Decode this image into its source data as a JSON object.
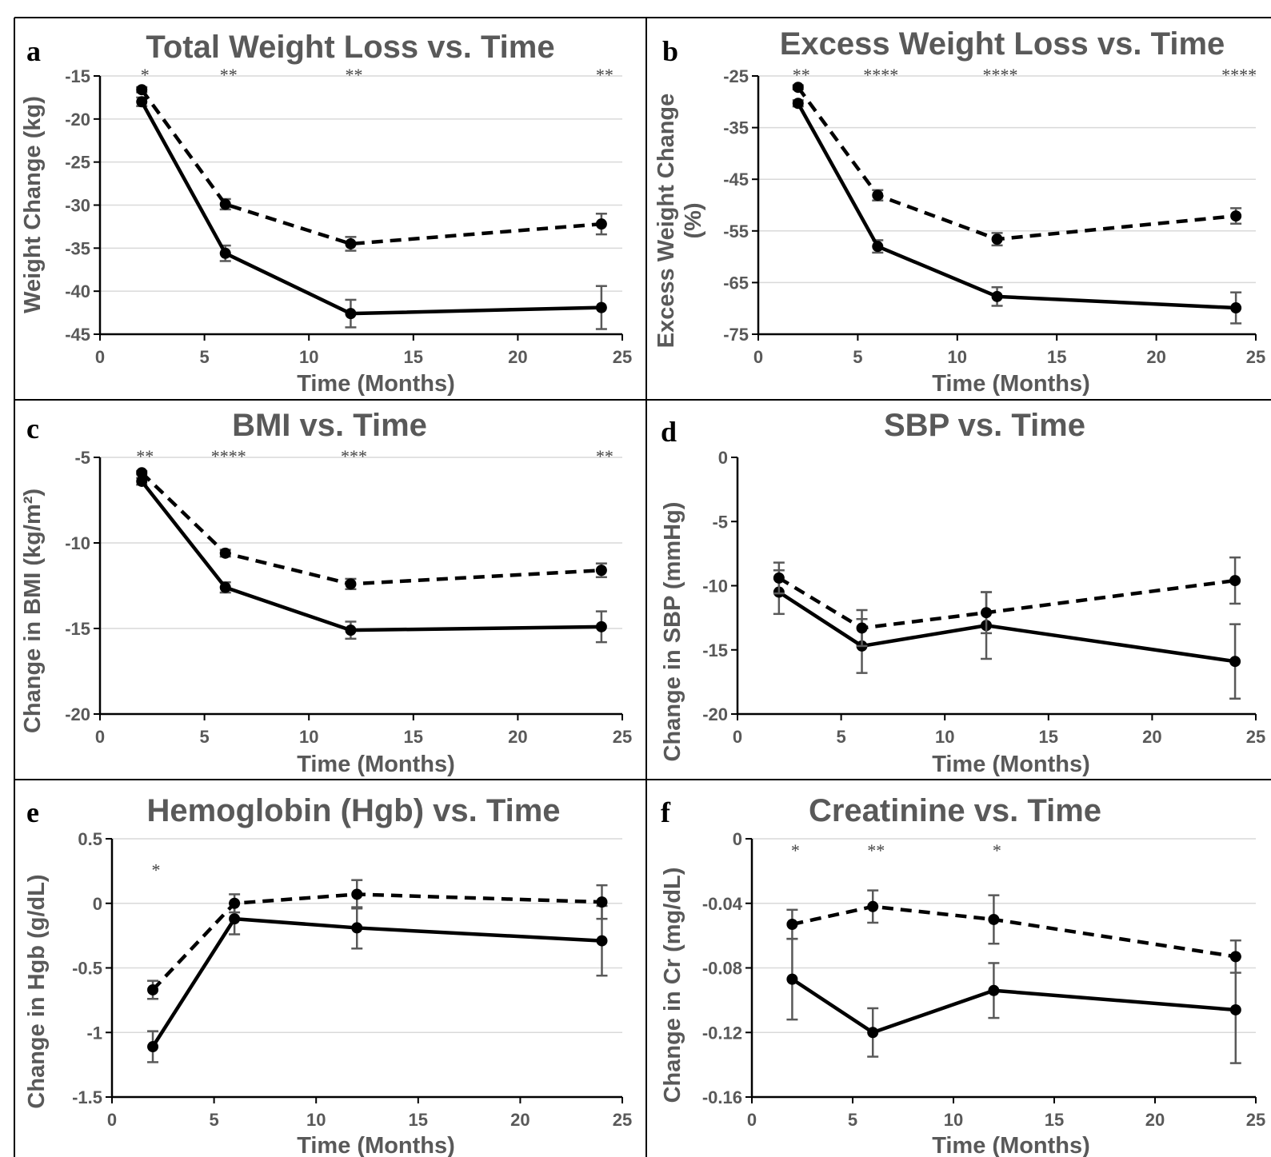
{
  "chart_data": [
    {
      "id": "a",
      "type": "line",
      "panel_label": "a",
      "title": "Total Weight Loss vs. Time",
      "xlabel": "Time (Months)",
      "ylabel": "Weight Change (kg)",
      "xlim": [
        0,
        25
      ],
      "ylim": [
        -45,
        -15
      ],
      "xticks": [
        0,
        5,
        10,
        15,
        20,
        25
      ],
      "yticks": [
        -15,
        -20,
        -25,
        -30,
        -35,
        -40,
        -45
      ],
      "grid": true,
      "x": [
        2,
        6,
        12,
        24
      ],
      "series": [
        {
          "style": "solid",
          "values": [
            -18.0,
            -35.6,
            -42.6,
            -41.9
          ],
          "err": [
            0.5,
            0.9,
            1.6,
            2.5
          ]
        },
        {
          "style": "dashed",
          "values": [
            -16.6,
            -29.9,
            -34.5,
            -32.2
          ],
          "err": [
            0.3,
            0.6,
            0.8,
            1.2
          ]
        }
      ],
      "significance": [
        {
          "x": 2,
          "label": "*"
        },
        {
          "x": 6,
          "label": "**"
        },
        {
          "x": 12,
          "label": "**"
        },
        {
          "x": 24,
          "label": "**"
        }
      ]
    },
    {
      "id": "b",
      "type": "line",
      "panel_label": "b",
      "title": "Excess Weight Loss vs. Time",
      "xlabel": "Time (Months)",
      "ylabel": "Excess Weight Change (%)",
      "xlim": [
        0,
        25
      ],
      "ylim": [
        -75,
        -25
      ],
      "xticks": [
        0,
        5,
        10,
        15,
        20,
        25
      ],
      "yticks": [
        -25,
        -35,
        -45,
        -55,
        -65,
        -75
      ],
      "grid": true,
      "x": [
        2,
        6,
        12,
        24
      ],
      "series": [
        {
          "style": "solid",
          "values": [
            -30.3,
            -58.0,
            -67.7,
            -69.9
          ],
          "err": [
            0.6,
            1.2,
            1.8,
            3.0
          ]
        },
        {
          "style": "dashed",
          "values": [
            -27.2,
            -48.1,
            -56.6,
            -52.1
          ],
          "err": [
            0.4,
            1.0,
            1.2,
            1.5
          ]
        }
      ],
      "significance": [
        {
          "x": 2,
          "label": "**"
        },
        {
          "x": 6,
          "label": "****"
        },
        {
          "x": 12,
          "label": "****"
        },
        {
          "x": 24,
          "label": "****"
        }
      ]
    },
    {
      "id": "c",
      "type": "line",
      "panel_label": "c",
      "title": "BMI vs. Time",
      "xlabel": "Time (Months)",
      "ylabel": "Change in BMI (kg/m²)",
      "xlim": [
        0,
        25
      ],
      "ylim": [
        -20,
        -5
      ],
      "xticks": [
        0,
        5,
        10,
        15,
        20,
        25
      ],
      "yticks": [
        -5,
        -10,
        -15,
        -20
      ],
      "grid": true,
      "x": [
        2,
        6,
        12,
        24
      ],
      "series": [
        {
          "style": "solid",
          "values": [
            -6.4,
            -12.6,
            -15.1,
            -14.9
          ],
          "err": [
            0.2,
            0.3,
            0.5,
            0.9
          ]
        },
        {
          "style": "dashed",
          "values": [
            -5.9,
            -10.6,
            -12.4,
            -11.6
          ],
          "err": [
            0.1,
            0.2,
            0.3,
            0.4
          ]
        }
      ],
      "significance": [
        {
          "x": 2,
          "label": "**"
        },
        {
          "x": 6,
          "label": "****"
        },
        {
          "x": 12,
          "label": "***"
        },
        {
          "x": 24,
          "label": "**"
        }
      ]
    },
    {
      "id": "d",
      "type": "line",
      "panel_label": "d",
      "title": "SBP vs. Time",
      "xlabel": "Time (Months)",
      "ylabel": "Change in SBP (mmHg)",
      "xlim": [
        0,
        25
      ],
      "ylim": [
        -20,
        0
      ],
      "xticks": [
        0,
        5,
        10,
        15,
        20,
        25
      ],
      "yticks": [
        0,
        -5,
        -10,
        -15,
        -20
      ],
      "grid": false,
      "x": [
        2,
        6,
        12,
        24
      ],
      "series": [
        {
          "style": "solid",
          "values": [
            -10.5,
            -14.7,
            -13.1,
            -15.9
          ],
          "err": [
            1.7,
            2.1,
            2.6,
            2.9
          ]
        },
        {
          "style": "dashed",
          "values": [
            -9.4,
            -13.3,
            -12.1,
            -9.6
          ],
          "err": [
            1.2,
            1.4,
            1.6,
            1.8
          ]
        }
      ],
      "significance": []
    },
    {
      "id": "e",
      "type": "line",
      "panel_label": "e",
      "title": "Hemoglobin (Hgb) vs. Time",
      "xlabel": "Time (Months)",
      "ylabel": "Change in Hgb (g/dL)",
      "xlim": [
        0,
        25
      ],
      "ylim": [
        -1.5,
        0.5
      ],
      "xticks": [
        0,
        5,
        10,
        15,
        20,
        25
      ],
      "yticks": [
        0.5,
        0,
        -0.5,
        -1,
        -1.5
      ],
      "grid": true,
      "x": [
        2,
        6,
        12,
        24
      ],
      "series": [
        {
          "style": "solid",
          "values": [
            -1.11,
            -0.12,
            -0.19,
            -0.29
          ],
          "err": [
            0.12,
            0.12,
            0.16,
            0.27
          ]
        },
        {
          "style": "dashed",
          "values": [
            -0.67,
            0.0,
            0.07,
            0.01
          ],
          "err": [
            0.07,
            0.07,
            0.11,
            0.13
          ]
        }
      ],
      "significance": [
        {
          "x": 2,
          "label": "*"
        }
      ]
    },
    {
      "id": "f",
      "type": "line",
      "panel_label": "f",
      "title": "Creatinine vs. Time",
      "xlabel": "Time (Months)",
      "ylabel": "Change in Cr (mg/dL)",
      "xlim": [
        0,
        25
      ],
      "ylim": [
        -0.16,
        0
      ],
      "xticks": [
        0,
        5,
        10,
        15,
        20,
        25
      ],
      "yticks": [
        0,
        -0.04,
        -0.08,
        -0.12,
        -0.16
      ],
      "grid": true,
      "x": [
        2,
        6,
        12,
        24
      ],
      "series": [
        {
          "style": "solid",
          "values": [
            -0.087,
            -0.12,
            -0.094,
            -0.106
          ],
          "err": [
            0.025,
            0.015,
            0.017,
            0.033
          ]
        },
        {
          "style": "dashed",
          "values": [
            -0.053,
            -0.042,
            -0.05,
            -0.073
          ],
          "err": [
            0.009,
            0.01,
            0.015,
            0.01
          ]
        }
      ],
      "significance": [
        {
          "x": 2,
          "label": "*"
        },
        {
          "x": 6,
          "label": "**"
        },
        {
          "x": 12,
          "label": "*"
        }
      ]
    }
  ]
}
